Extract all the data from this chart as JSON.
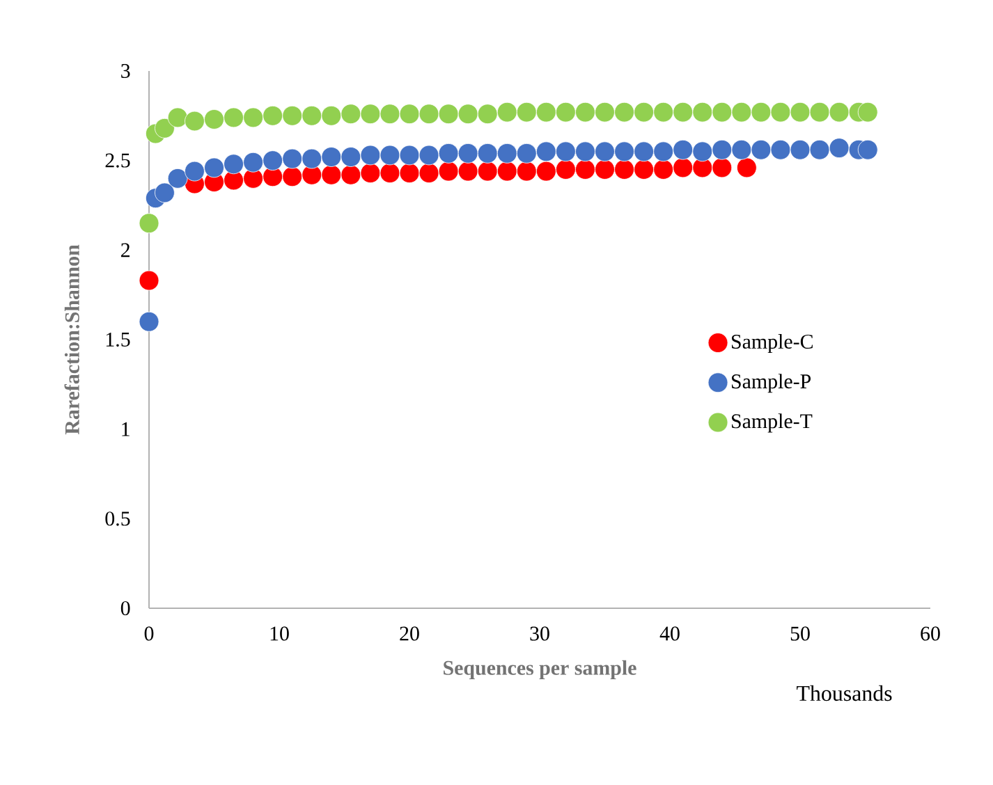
{
  "chart_data": {
    "type": "scatter",
    "xlabel": "Sequences per sample",
    "ylabel": "Rarefaction:Shannon",
    "annotations": [
      "Thousands"
    ],
    "xlim": [
      0,
      60
    ],
    "ylim": [
      0,
      3
    ],
    "xticks": [
      0,
      10,
      20,
      30,
      40,
      50,
      60
    ],
    "yticks": [
      0,
      0.5,
      1,
      1.5,
      2,
      2.5,
      3
    ],
    "legend": "right",
    "series": [
      {
        "name": "Sample-C",
        "color": "#ff0000",
        "x": [
          0,
          0.5,
          1.2,
          2.2,
          3.5,
          5,
          6.5,
          8,
          9.5,
          11,
          12.5,
          14,
          15.5,
          17,
          18.5,
          20,
          21.5,
          23,
          24.5,
          26,
          27.5,
          29,
          30.5,
          32,
          33.5,
          35,
          36.5,
          38,
          39.5,
          41,
          42.5,
          44,
          45.9
        ],
        "values": [
          1.83,
          null,
          null,
          null,
          2.37,
          2.38,
          2.39,
          2.4,
          2.41,
          2.41,
          2.42,
          2.42,
          2.42,
          2.43,
          2.43,
          2.43,
          2.43,
          2.44,
          2.44,
          2.44,
          2.44,
          2.44,
          2.44,
          2.45,
          2.45,
          2.45,
          2.45,
          2.45,
          2.45,
          2.46,
          2.46,
          2.46,
          2.46
        ]
      },
      {
        "name": "Sample-P",
        "color": "#4472c4",
        "x": [
          0,
          0.5,
          1.2,
          2.2,
          3.5,
          5,
          6.5,
          8,
          9.5,
          11,
          12.5,
          14,
          15.5,
          17,
          18.5,
          20,
          21.5,
          23,
          24.5,
          26,
          27.5,
          29,
          30.5,
          32,
          33.5,
          35,
          36.5,
          38,
          39.5,
          41,
          42.5,
          44,
          45.5,
          47,
          48.5,
          50,
          51.5,
          53,
          54.5,
          55.2
        ],
        "values": [
          1.6,
          2.29,
          2.32,
          2.4,
          2.44,
          2.46,
          2.48,
          2.49,
          2.5,
          2.51,
          2.51,
          2.52,
          2.52,
          2.53,
          2.53,
          2.53,
          2.53,
          2.54,
          2.54,
          2.54,
          2.54,
          2.54,
          2.55,
          2.55,
          2.55,
          2.55,
          2.55,
          2.55,
          2.55,
          2.56,
          2.55,
          2.56,
          2.56,
          2.56,
          2.56,
          2.56,
          2.56,
          2.57,
          2.56,
          2.56
        ]
      },
      {
        "name": "Sample-T",
        "color": "#92d050",
        "x": [
          0,
          0.5,
          1.2,
          2.2,
          3.5,
          5,
          6.5,
          8,
          9.5,
          11,
          12.5,
          14,
          15.5,
          17,
          18.5,
          20,
          21.5,
          23,
          24.5,
          26,
          27.5,
          29,
          30.5,
          32,
          33.5,
          35,
          36.5,
          38,
          39.5,
          41,
          42.5,
          44,
          45.5,
          47,
          48.5,
          50,
          51.5,
          53,
          54.5,
          55.2
        ],
        "values": [
          2.15,
          2.65,
          2.68,
          2.74,
          2.72,
          2.73,
          2.74,
          2.74,
          2.75,
          2.75,
          2.75,
          2.75,
          2.76,
          2.76,
          2.76,
          2.76,
          2.76,
          2.76,
          2.76,
          2.76,
          2.77,
          2.77,
          2.77,
          2.77,
          2.77,
          2.77,
          2.77,
          2.77,
          2.77,
          2.77,
          2.77,
          2.77,
          2.77,
          2.77,
          2.77,
          2.77,
          2.77,
          2.77,
          2.77,
          2.77
        ]
      }
    ]
  }
}
